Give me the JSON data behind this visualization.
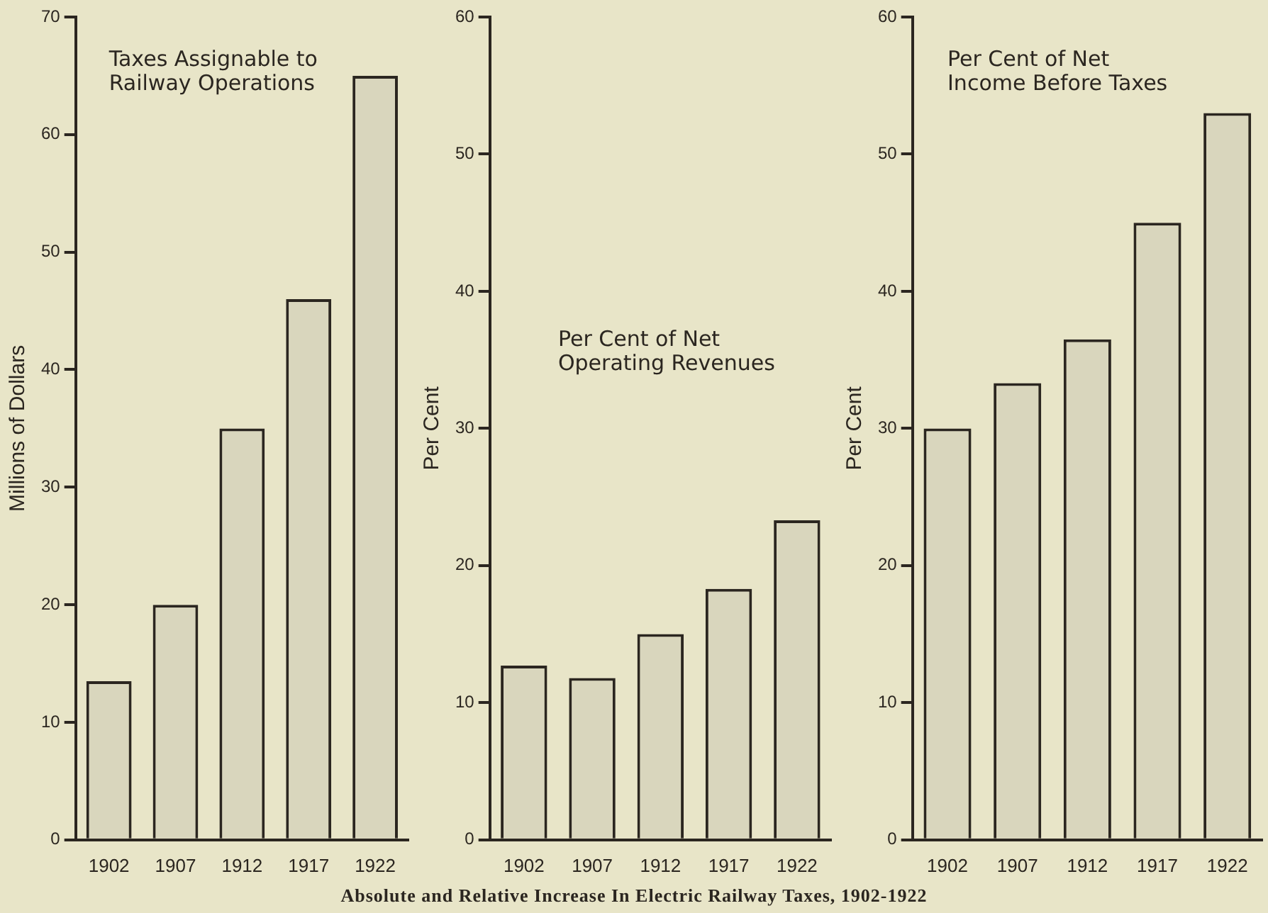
{
  "chart_data": [
    {
      "type": "bar",
      "title": "Taxes Assignable to Railway Operations",
      "ylabel": "Millions of Dollars",
      "categories": [
        "1902",
        "1907",
        "1912",
        "1917",
        "1922"
      ],
      "values": [
        13.5,
        20,
        35,
        46,
        65
      ],
      "color": "#d9d6bd",
      "ylim": [
        0,
        70
      ],
      "yticks": [
        0,
        10,
        20,
        30,
        40,
        50,
        60,
        70
      ],
      "legend": false,
      "annotations": [
        "Absolute and Relative Increase In Electric Railway Taxes, 1902-1922"
      ]
    },
    {
      "type": "bar",
      "title": "Per Cent of Net Operating Revenues",
      "ylabel": "Per Cent",
      "categories": [
        "1902",
        "1907",
        "1912",
        "1917",
        "1922"
      ],
      "values": [
        12.7,
        11.8,
        15,
        18.3,
        23.3
      ],
      "color": "#d9d6bd",
      "ylim": [
        0,
        60
      ],
      "yticks": [
        0,
        10,
        20,
        30,
        40,
        50,
        60
      ],
      "legend": false
    },
    {
      "type": "bar",
      "title": "Per Cent of Net Income Before Taxes",
      "ylabel": "Per Cent",
      "categories": [
        "1902",
        "1907",
        "1912",
        "1917",
        "1922"
      ],
      "values": [
        30,
        33.3,
        36.5,
        45,
        53
      ],
      "color": "#d9d6bd",
      "ylim": [
        0,
        60
      ],
      "yticks": [
        0,
        10,
        20,
        30,
        40,
        50,
        60
      ],
      "legend": false
    }
  ]
}
